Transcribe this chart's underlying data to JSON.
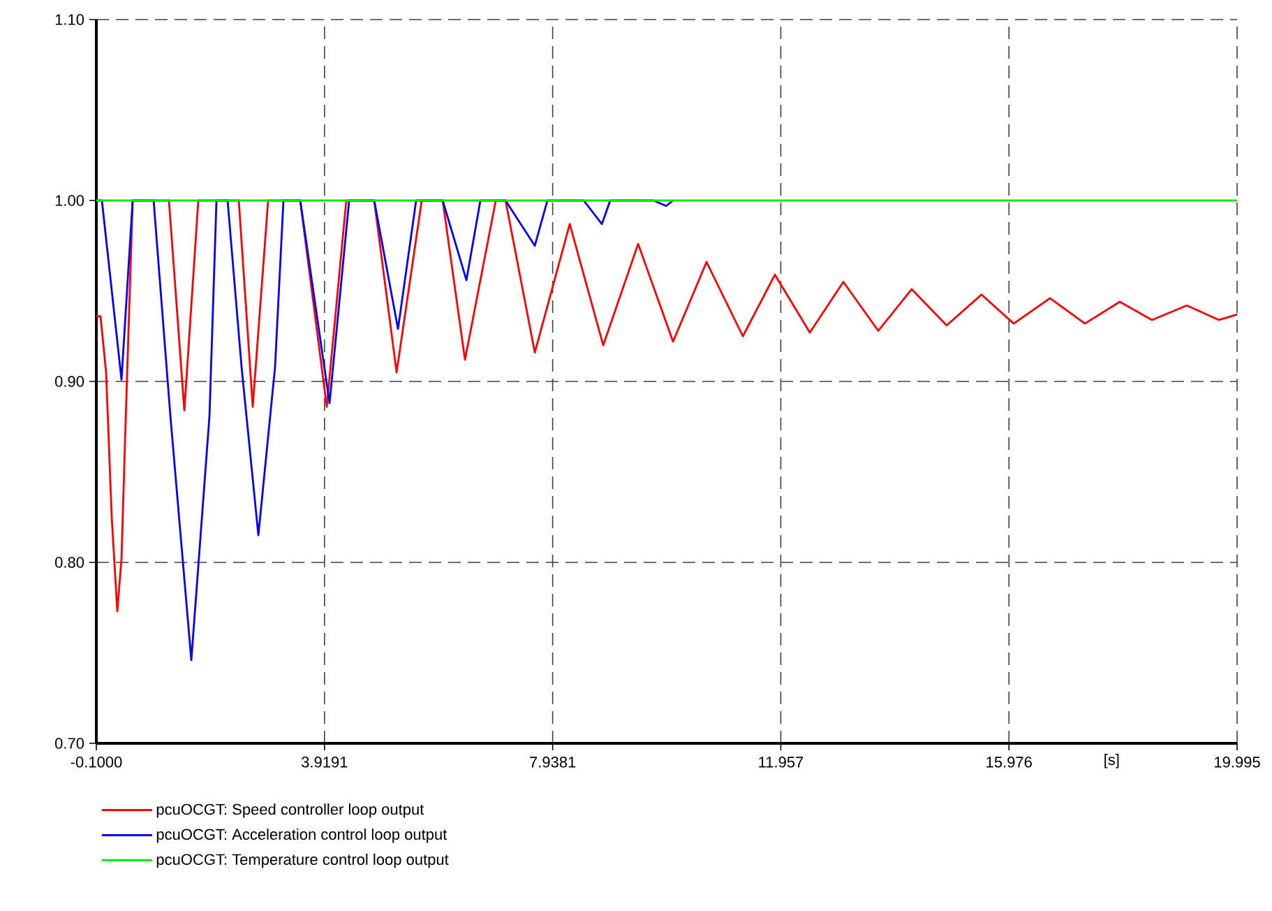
{
  "chart_data": {
    "type": "line",
    "xlabel": "[s]",
    "xlim": [
      -0.1,
      19.995
    ],
    "ylim": [
      0.7,
      1.1
    ],
    "xticks": [
      {
        "value": -0.1,
        "label": "-0.1000"
      },
      {
        "value": 3.9191,
        "label": "3.9191"
      },
      {
        "value": 7.9381,
        "label": "7.9381"
      },
      {
        "value": 11.957,
        "label": "11.957"
      },
      {
        "value": 15.976,
        "label": "15.976"
      },
      {
        "value": 19.995,
        "label": "19.995"
      }
    ],
    "yticks": [
      {
        "value": 0.7,
        "label": "0.70"
      },
      {
        "value": 0.8,
        "label": "0.80"
      },
      {
        "value": 0.9,
        "label": "0.90"
      },
      {
        "value": 1.0,
        "label": "1.00"
      },
      {
        "value": 1.1,
        "label": "1.10"
      }
    ],
    "grid": true,
    "legend": "bottom",
    "line_style": "solid",
    "marker": "none",
    "series": [
      {
        "name": "pcuOCGT: Speed controller loop output",
        "color": "#ff0000",
        "x": [
          -0.1,
          -0.026,
          0.072,
          0.171,
          0.269,
          0.343,
          0.417,
          0.54,
          1.179,
          1.45,
          1.696,
          2.409,
          2.655,
          2.926,
          3.492,
          3.959,
          4.303,
          4.795,
          5.189,
          5.632,
          6.001,
          6.394,
          6.936,
          7.108,
          7.624,
          8.239,
          8.829,
          9.444,
          10.059,
          10.649,
          11.289,
          11.854,
          12.469,
          13.059,
          13.674,
          14.264,
          14.879,
          15.494,
          16.06,
          16.699,
          17.314,
          17.929,
          18.495,
          19.11,
          19.676,
          19.995
        ],
        "values": [
          0.936,
          0.936,
          0.905,
          0.825,
          0.773,
          0.802,
          0.879,
          1.0,
          1.0,
          0.884,
          1.0,
          1.0,
          0.886,
          1.0,
          1.0,
          0.886,
          1.0,
          1.0,
          0.905,
          1.0,
          1.0,
          0.912,
          1.0,
          1.0,
          0.916,
          0.987,
          0.92,
          0.976,
          0.922,
          0.966,
          0.925,
          0.959,
          0.927,
          0.955,
          0.928,
          0.951,
          0.931,
          0.948,
          0.932,
          0.946,
          0.932,
          0.944,
          0.934,
          0.942,
          0.934,
          0.937
        ]
      },
      {
        "name": "pcuOCGT: Acceleration control loop output",
        "color": "#0000ff",
        "x": [
          -0.1,
          -0.002,
          0.343,
          0.54,
          0.909,
          1.204,
          1.573,
          1.893,
          2.016,
          2.212,
          2.458,
          2.754,
          3.048,
          3.196,
          3.492,
          4.008,
          4.353,
          4.795,
          5.214,
          5.533,
          6.001,
          6.419,
          6.665,
          7.108,
          7.624,
          7.846,
          8.485,
          8.805,
          8.952,
          9.715,
          9.937,
          10.059
        ],
        "values": [
          1.0,
          1.0,
          0.901,
          1.0,
          1.0,
          0.881,
          0.746,
          0.881,
          1.0,
          1.0,
          0.908,
          0.815,
          0.908,
          1.0,
          1.0,
          0.888,
          1.0,
          1.0,
          0.929,
          1.0,
          1.0,
          0.956,
          1.0,
          1.0,
          0.975,
          1.0,
          1.0,
          0.987,
          1.0,
          1.0,
          0.997,
          1.0
        ]
      },
      {
        "name": "pcuOCGT: Temperature control loop output",
        "color": "#00ee00",
        "x": [
          -0.1,
          19.995
        ],
        "values": [
          1.0,
          1.0
        ]
      }
    ]
  }
}
